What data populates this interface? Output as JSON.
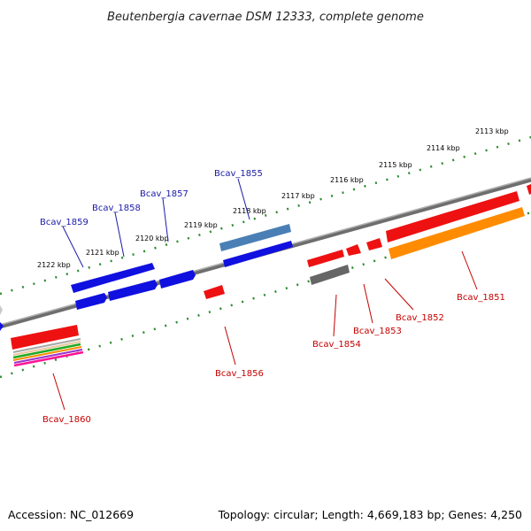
{
  "title": "Beutenbergia cavernae DSM 12333, complete genome",
  "footer": {
    "accession": "Accession: NC_012669",
    "summary": "Topology: circular; Length: 4,669,183 bp; Genes: 4,250"
  },
  "colors": {
    "backbone": "#8a8a8a",
    "tick_dot": "#2e8b2e",
    "forward_label": "#1a1aa8",
    "reverse_label": "#c40000",
    "blue": "#1010e0",
    "steel": "#4a7fb5",
    "red": "#ee1111",
    "orange": "#ff8c00",
    "gray": "#666666"
  },
  "ticks": [
    {
      "label": "2122 kbp"
    },
    {
      "label": "2121 kbp"
    },
    {
      "label": "2120 kbp"
    },
    {
      "label": "2119 kbp"
    },
    {
      "label": "2118 kbp"
    },
    {
      "label": "2117 kbp"
    },
    {
      "label": "2116 kbp"
    },
    {
      "label": "2115 kbp"
    },
    {
      "label": "2114 kbp"
    },
    {
      "label": "2113 kbp"
    }
  ],
  "gene_labels_forward": [
    {
      "label": "Bcav_1859"
    },
    {
      "label": "Bcav_1858"
    },
    {
      "label": "Bcav_1857"
    },
    {
      "label": "Bcav_1855"
    }
  ],
  "gene_labels_reverse": [
    {
      "label": "Bcav_1860"
    },
    {
      "label": "Bcav_1856"
    },
    {
      "label": "Bcav_1854"
    },
    {
      "label": "Bcav_1853"
    },
    {
      "label": "Bcav_1852"
    },
    {
      "label": "Bcav_1851"
    }
  ]
}
